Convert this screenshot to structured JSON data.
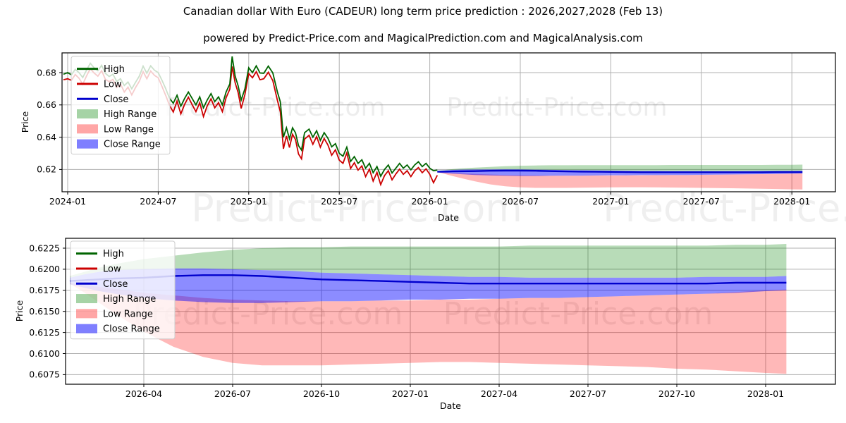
{
  "chart_data": {
    "type": "line",
    "title": "Canadian dollar With Euro (CADEUR) long term price prediction : 2026,2027,2028 (Feb 13)",
    "subtitle": "powered by Predict-Price.com and MagicalPrediction.com and MagicalAnalysis.com",
    "watermark": "Predict-Price.com",
    "colors": {
      "high_line": "#006400",
      "low_line": "#cc0000",
      "close_line": "#0000cd",
      "high_range_fill": "rgba(0,128,0,0.28)",
      "low_range_fill": "rgba(255,0,0,0.28)",
      "close_range_fill": "rgba(0,0,255,0.45)",
      "grid": "#b0b0b0",
      "frame": "#000000",
      "watermark_gray": "#808080"
    },
    "legend": {
      "items": [
        {
          "label": "High",
          "swatch": "line",
          "color": "#006400"
        },
        {
          "label": "Low",
          "swatch": "line",
          "color": "#cc0000"
        },
        {
          "label": "Close",
          "swatch": "line",
          "color": "#0000cd"
        },
        {
          "label": "High Range",
          "swatch": "patch",
          "color": "rgba(0,128,0,0.35)"
        },
        {
          "label": "Low Range",
          "swatch": "patch",
          "color": "rgba(255,0,0,0.35)"
        },
        {
          "label": "Close Range",
          "swatch": "patch",
          "color": "rgba(0,0,255,0.5)"
        }
      ]
    },
    "axes": [
      {
        "id": "overview",
        "ylabel": "Price",
        "xlabel": "Date",
        "ylim": [
          0.604,
          0.693
        ],
        "yticks": [
          {
            "v": 0.62,
            "label": "0.62"
          },
          {
            "v": 0.64,
            "label": "0.64"
          },
          {
            "v": 0.66,
            "label": "0.66"
          },
          {
            "v": 0.68,
            "label": "0.68"
          }
        ],
        "xticks": [
          {
            "t": 0,
            "label": "2024-01"
          },
          {
            "t": 6,
            "label": "2024-07"
          },
          {
            "t": 12,
            "label": "2025-01"
          },
          {
            "t": 18,
            "label": "2025-07"
          },
          {
            "t": 24,
            "label": "2026-01"
          },
          {
            "t": 30,
            "label": "2026-07"
          },
          {
            "t": 36,
            "label": "2027-01"
          },
          {
            "t": 42,
            "label": "2027-07"
          },
          {
            "t": 48,
            "label": "2028-01"
          }
        ]
      },
      {
        "id": "prediction-detail",
        "ylabel": "Price",
        "xlabel": "Date",
        "ylim": [
          0.6064,
          0.6236
        ],
        "yticks": [
          {
            "v": 0.6075,
            "label": "0.6075"
          },
          {
            "v": 0.61,
            "label": "0.6100"
          },
          {
            "v": 0.6125,
            "label": "0.6125"
          },
          {
            "v": 0.615,
            "label": "0.6150"
          },
          {
            "v": 0.6175,
            "label": "0.6175"
          },
          {
            "v": 0.62,
            "label": "0.6200"
          },
          {
            "v": 0.6225,
            "label": "0.6225"
          }
        ],
        "xticks": [
          {
            "t": 27,
            "label": "2026-04"
          },
          {
            "t": 30,
            "label": "2026-07"
          },
          {
            "t": 33,
            "label": "2026-10"
          },
          {
            "t": 36,
            "label": "2027-01"
          },
          {
            "t": 39,
            "label": "2027-04"
          },
          {
            "t": 42,
            "label": "2027-07"
          },
          {
            "t": 45,
            "label": "2027-10"
          },
          {
            "t": 48,
            "label": "2028-01"
          }
        ]
      }
    ],
    "history": {
      "note": "t = months since 2024-01; points are [t, high, low]",
      "points": [
        [
          -0.28,
          0.679,
          0.6756
        ],
        [
          0,
          0.68,
          0.6762
        ],
        [
          0.25,
          0.6786,
          0.6752
        ],
        [
          0.5,
          0.682,
          0.6788
        ],
        [
          0.75,
          0.68,
          0.6766
        ],
        [
          1,
          0.677,
          0.6728
        ],
        [
          1.25,
          0.6816,
          0.678
        ],
        [
          1.5,
          0.6858,
          0.6824
        ],
        [
          1.75,
          0.683,
          0.6798
        ],
        [
          2,
          0.6812,
          0.6778
        ],
        [
          2.25,
          0.6845,
          0.6812
        ],
        [
          2.5,
          0.6795,
          0.6758
        ],
        [
          2.75,
          0.6776,
          0.6744
        ],
        [
          3,
          0.679,
          0.6758
        ],
        [
          3.25,
          0.6746,
          0.6708
        ],
        [
          3.5,
          0.6762,
          0.673
        ],
        [
          3.75,
          0.672,
          0.668
        ],
        [
          4,
          0.6742,
          0.671
        ],
        [
          4.25,
          0.67,
          0.6662
        ],
        [
          4.5,
          0.674,
          0.6708
        ],
        [
          4.75,
          0.6778,
          0.6746
        ],
        [
          5,
          0.684,
          0.6806
        ],
        [
          5.25,
          0.6796,
          0.6762
        ],
        [
          5.5,
          0.6842,
          0.681
        ],
        [
          5.75,
          0.6815,
          0.6783
        ],
        [
          6,
          0.68,
          0.6768
        ],
        [
          6.25,
          0.6752,
          0.6714
        ],
        [
          6.5,
          0.67,
          0.6658
        ],
        [
          6.75,
          0.6642,
          0.6598
        ],
        [
          7,
          0.661,
          0.6556
        ],
        [
          7.25,
          0.666,
          0.6624
        ],
        [
          7.5,
          0.6592,
          0.6544
        ],
        [
          7.75,
          0.664,
          0.6604
        ],
        [
          8,
          0.668,
          0.6648
        ],
        [
          8.25,
          0.664,
          0.6602
        ],
        [
          8.5,
          0.66,
          0.6558
        ],
        [
          8.75,
          0.665,
          0.6614
        ],
        [
          9,
          0.6582,
          0.6528
        ],
        [
          9.25,
          0.663,
          0.6594
        ],
        [
          9.5,
          0.667,
          0.6638
        ],
        [
          9.75,
          0.662,
          0.6582
        ],
        [
          10,
          0.665,
          0.6614
        ],
        [
          10.25,
          0.66,
          0.6558
        ],
        [
          10.5,
          0.668,
          0.6644
        ],
        [
          10.75,
          0.673,
          0.6698
        ],
        [
          10.9,
          0.69,
          0.6838
        ],
        [
          11.1,
          0.678,
          0.6738
        ],
        [
          11.3,
          0.6718,
          0.6676
        ],
        [
          11.5,
          0.663,
          0.6578
        ],
        [
          11.75,
          0.67,
          0.6664
        ],
        [
          12,
          0.683,
          0.6794
        ],
        [
          12.25,
          0.68,
          0.6768
        ],
        [
          12.5,
          0.6842,
          0.6806
        ],
        [
          12.75,
          0.6798,
          0.6756
        ],
        [
          13,
          0.6796,
          0.6762
        ],
        [
          13.3,
          0.684,
          0.6802
        ],
        [
          13.6,
          0.6798,
          0.675
        ],
        [
          13.9,
          0.668,
          0.6628
        ],
        [
          14.1,
          0.6618,
          0.6556
        ],
        [
          14.3,
          0.64,
          0.6328
        ],
        [
          14.5,
          0.6458,
          0.6408
        ],
        [
          14.7,
          0.639,
          0.6336
        ],
        [
          14.9,
          0.6458,
          0.6418
        ],
        [
          15.1,
          0.6428,
          0.6386
        ],
        [
          15.3,
          0.6348,
          0.6296
        ],
        [
          15.5,
          0.632,
          0.6266
        ],
        [
          15.7,
          0.6428,
          0.6388
        ],
        [
          16,
          0.645,
          0.6412
        ],
        [
          16.25,
          0.64,
          0.6356
        ],
        [
          16.5,
          0.644,
          0.6404
        ],
        [
          16.75,
          0.638,
          0.6338
        ],
        [
          17,
          0.6428,
          0.6392
        ],
        [
          17.25,
          0.6394,
          0.6352
        ],
        [
          17.5,
          0.634,
          0.6288
        ],
        [
          17.75,
          0.636,
          0.6322
        ],
        [
          18,
          0.63,
          0.6258
        ],
        [
          18.25,
          0.6282,
          0.6238
        ],
        [
          18.5,
          0.6338,
          0.6302
        ],
        [
          18.75,
          0.625,
          0.6206
        ],
        [
          19,
          0.628,
          0.6242
        ],
        [
          19.25,
          0.6238,
          0.6196
        ],
        [
          19.5,
          0.626,
          0.6222
        ],
        [
          19.75,
          0.6208,
          0.6156
        ],
        [
          20,
          0.6238,
          0.6202
        ],
        [
          20.25,
          0.618,
          0.6128
        ],
        [
          20.5,
          0.6218,
          0.6182
        ],
        [
          20.75,
          0.6158,
          0.6106
        ],
        [
          21,
          0.62,
          0.6162
        ],
        [
          21.25,
          0.6228,
          0.6192
        ],
        [
          21.5,
          0.6178,
          0.6136
        ],
        [
          21.75,
          0.6208,
          0.6172
        ],
        [
          22,
          0.6238,
          0.6202
        ],
        [
          22.25,
          0.6208,
          0.617
        ],
        [
          22.5,
          0.6228,
          0.6192
        ],
        [
          22.75,
          0.6198,
          0.6156
        ],
        [
          23,
          0.6228,
          0.6192
        ],
        [
          23.25,
          0.6248,
          0.6212
        ],
        [
          23.5,
          0.6218,
          0.618
        ],
        [
          23.75,
          0.6238,
          0.6204
        ],
        [
          24,
          0.6208,
          0.617
        ],
        [
          24.25,
          0.6192,
          0.6118
        ],
        [
          24.5,
          0.6196,
          0.6164
        ]
      ]
    },
    "prediction": {
      "note": "t = months since 2024-01 (2026-01-15 through 2028-02)",
      "t": [
        24.5,
        25,
        25.5,
        26,
        27,
        28,
        29,
        30,
        31,
        32,
        33,
        34,
        35,
        36,
        37,
        38,
        39,
        40,
        41,
        42,
        43,
        44,
        45,
        46,
        47,
        48,
        48.7
      ],
      "close": [
        0.6186,
        0.6187,
        0.6188,
        0.6189,
        0.619,
        0.6192,
        0.6193,
        0.6193,
        0.6192,
        0.619,
        0.6188,
        0.6187,
        0.6186,
        0.6185,
        0.6184,
        0.6183,
        0.6183,
        0.6183,
        0.6183,
        0.6183,
        0.6183,
        0.6183,
        0.6183,
        0.6183,
        0.6184,
        0.6184,
        0.6184
      ],
      "close_hi": [
        0.619,
        0.6194,
        0.6197,
        0.6199,
        0.62,
        0.6201,
        0.6201,
        0.62,
        0.6199,
        0.6198,
        0.6196,
        0.6195,
        0.6194,
        0.6193,
        0.6192,
        0.6191,
        0.6191,
        0.619,
        0.619,
        0.619,
        0.619,
        0.619,
        0.619,
        0.6191,
        0.6191,
        0.6191,
        0.6192
      ],
      "close_lo": [
        0.6182,
        0.6178,
        0.6174,
        0.6171,
        0.6166,
        0.6163,
        0.6161,
        0.616,
        0.616,
        0.6161,
        0.6162,
        0.6162,
        0.6163,
        0.6164,
        0.6164,
        0.6165,
        0.6165,
        0.6166,
        0.6166,
        0.6167,
        0.6168,
        0.6169,
        0.617,
        0.6171,
        0.6172,
        0.6174,
        0.6175
      ],
      "high_top": [
        0.6192,
        0.6197,
        0.6202,
        0.6206,
        0.6212,
        0.6216,
        0.622,
        0.6223,
        0.6225,
        0.6226,
        0.6226,
        0.6227,
        0.6227,
        0.6227,
        0.6227,
        0.6227,
        0.6227,
        0.6228,
        0.6228,
        0.6228,
        0.6228,
        0.6228,
        0.6228,
        0.6228,
        0.6229,
        0.6229,
        0.623
      ],
      "low_top": [
        0.6184,
        0.6181,
        0.6179,
        0.6177,
        0.6172,
        0.6169,
        0.6166,
        0.6164,
        0.6163,
        0.6162,
        0.6162,
        0.6162,
        0.6163,
        0.6163,
        0.6164,
        0.6164,
        0.6165,
        0.6166,
        0.6166,
        0.6167,
        0.6168,
        0.6169,
        0.617,
        0.6171,
        0.6173,
        0.6175,
        0.6176
      ],
      "low_bot": [
        0.6183,
        0.6172,
        0.616,
        0.6148,
        0.6126,
        0.6108,
        0.6096,
        0.6089,
        0.6086,
        0.6086,
        0.6086,
        0.6087,
        0.6088,
        0.6089,
        0.609,
        0.609,
        0.6089,
        0.6088,
        0.6087,
        0.6086,
        0.6085,
        0.6084,
        0.6082,
        0.6081,
        0.6079,
        0.6077,
        0.6076
      ]
    }
  }
}
